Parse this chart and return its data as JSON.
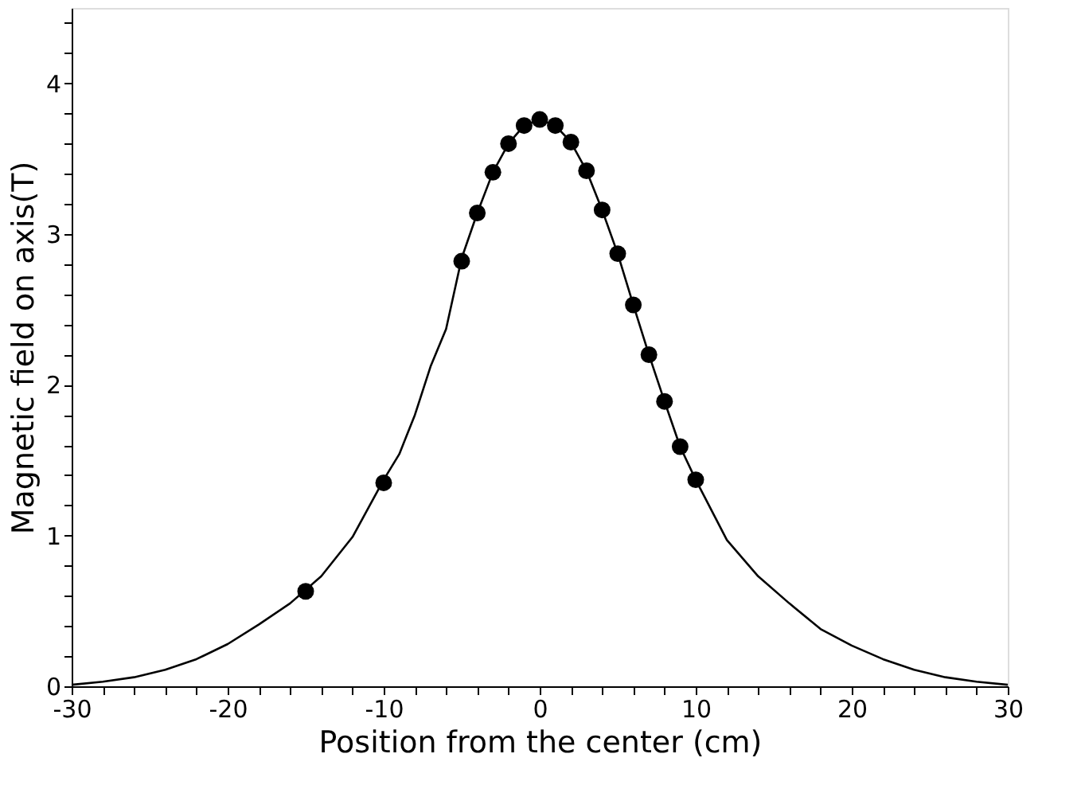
{
  "chart_data": {
    "type": "line",
    "xlabel": "Position from the center (cm)",
    "ylabel": "Magnetic field on axis(T)",
    "xlim": [
      -30,
      30
    ],
    "ylim": [
      0,
      4.5
    ],
    "xticks": [
      -30,
      {
        "value": -28,
        "label": null
      },
      {
        "value": -26,
        "label": null
      },
      {
        "value": -24,
        "label": null
      },
      {
        "value": -22,
        "label": null
      },
      -20,
      {
        "value": -18,
        "label": null
      },
      {
        "value": -16,
        "label": null
      },
      {
        "value": -14,
        "label": null
      },
      {
        "value": -12,
        "label": null
      },
      -10,
      {
        "value": -8,
        "label": null
      },
      {
        "value": -6,
        "label": null
      },
      {
        "value": -4,
        "label": null
      },
      {
        "value": -2,
        "label": null
      },
      0,
      {
        "value": 2,
        "label": null
      },
      {
        "value": 4,
        "label": null
      },
      {
        "value": 6,
        "label": null
      },
      {
        "value": 8,
        "label": null
      },
      10,
      {
        "value": 12,
        "label": null
      },
      {
        "value": 14,
        "label": null
      },
      {
        "value": 16,
        "label": null
      },
      {
        "value": 18,
        "label": null
      },
      20,
      {
        "value": 22,
        "label": null
      },
      {
        "value": 24,
        "label": null
      },
      {
        "value": 26,
        "label": null
      },
      {
        "value": 28,
        "label": null
      },
      30
    ],
    "yticks": [
      0,
      {
        "value": 0.2,
        "label": null
      },
      {
        "value": 0.4,
        "label": null
      },
      {
        "value": 0.6,
        "label": null
      },
      {
        "value": 0.8,
        "label": null
      },
      1,
      {
        "value": 1.2,
        "label": null
      },
      {
        "value": 1.4,
        "label": null
      },
      {
        "value": 1.6,
        "label": null
      },
      {
        "value": 1.8,
        "label": null
      },
      2,
      {
        "value": 2.2,
        "label": null
      },
      {
        "value": 2.4,
        "label": null
      },
      {
        "value": 2.6,
        "label": null
      },
      {
        "value": 2.8,
        "label": null
      },
      3,
      {
        "value": 3.2,
        "label": null
      },
      {
        "value": 3.4,
        "label": null
      },
      {
        "value": 3.6,
        "label": null
      },
      {
        "value": 3.8,
        "label": null
      },
      4,
      {
        "value": 4.2,
        "label": null
      },
      {
        "value": 4.4,
        "label": null
      }
    ],
    "grid": false,
    "legend": false,
    "series": [
      {
        "type": "line",
        "color": "#000000",
        "marker": "none",
        "line_style": "solid",
        "x": [
          -30,
          -28,
          -26,
          -24,
          -22,
          -20,
          -18,
          -16,
          -14,
          -12,
          -10,
          -9,
          -8,
          -7,
          -6,
          -5,
          -4,
          -3,
          -2,
          -1,
          0,
          1,
          2,
          3,
          4,
          5,
          6,
          7,
          8,
          9,
          10,
          12,
          14,
          16,
          18,
          20,
          22,
          24,
          26,
          28,
          30
        ],
        "values": [
          0.01,
          0.03,
          0.06,
          0.11,
          0.18,
          0.28,
          0.41,
          0.55,
          0.73,
          0.99,
          1.37,
          1.54,
          1.8,
          2.12,
          2.37,
          2.84,
          3.14,
          3.41,
          3.6,
          3.72,
          3.76,
          3.72,
          3.61,
          3.42,
          3.16,
          2.87,
          2.53,
          2.2,
          1.89,
          1.59,
          1.37,
          0.97,
          0.73,
          0.55,
          0.38,
          0.27,
          0.18,
          0.11,
          0.06,
          0.03,
          0.01
        ]
      },
      {
        "type": "scatter",
        "color": "#000000",
        "marker": "circle",
        "x": [
          -15,
          -10,
          -5,
          -4,
          -3,
          -2,
          -1,
          0,
          1,
          2,
          3,
          4,
          5,
          6,
          7,
          8,
          9,
          10
        ],
        "values": [
          0.63,
          1.35,
          2.82,
          3.14,
          3.41,
          3.6,
          3.72,
          3.76,
          3.72,
          3.61,
          3.42,
          3.16,
          2.87,
          2.53,
          2.2,
          1.89,
          1.59,
          1.37
        ]
      }
    ]
  }
}
